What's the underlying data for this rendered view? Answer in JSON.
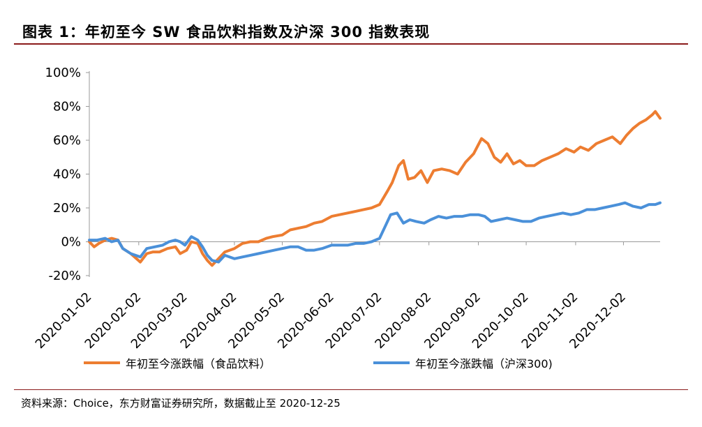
{
  "page": {
    "title": "图表 1：年初至今 SW 食品饮料指数及沪深 300 指数表现",
    "source": "资料来源：Choice，东方财富证券研究所，数据截止至 2020-12-25"
  },
  "chart_data": {
    "type": "line",
    "xlabel": "",
    "ylabel": "",
    "ylim": [
      -20,
      100
    ],
    "yticks": [
      "100%",
      "80%",
      "60%",
      "40%",
      "20%",
      "0%",
      "-20%"
    ],
    "yticks_values": [
      100,
      80,
      60,
      40,
      20,
      0,
      -20
    ],
    "xticks": [
      "2020-01-02",
      "2020-02-02",
      "2020-03-02",
      "2020-04-02",
      "2020-05-02",
      "2020-06-02",
      "2020-07-02",
      "2020-08-02",
      "2020-09-02",
      "2020-10-02",
      "2020-11-02",
      "2020-12-02"
    ],
    "xlim": [
      "2020-01-02",
      "2020-12-25"
    ],
    "grid": false,
    "legend_position": "bottom",
    "series": [
      {
        "name": "年初至今涨跌幅（食品饮料）",
        "color": "#ed7d31",
        "points": [
          [
            "2020-01-02",
            0
          ],
          [
            "2020-01-05",
            -3
          ],
          [
            "2020-01-08",
            -1
          ],
          [
            "2020-01-12",
            1
          ],
          [
            "2020-01-16",
            2
          ],
          [
            "2020-01-20",
            1
          ],
          [
            "2020-01-23",
            -4
          ],
          [
            "2020-01-28",
            -7
          ],
          [
            "2020-02-03",
            -12
          ],
          [
            "2020-02-07",
            -7
          ],
          [
            "2020-02-11",
            -6
          ],
          [
            "2020-02-15",
            -6
          ],
          [
            "2020-02-20",
            -4
          ],
          [
            "2020-02-25",
            -3
          ],
          [
            "2020-02-28",
            -7
          ],
          [
            "2020-03-03",
            -5
          ],
          [
            "2020-03-06",
            0
          ],
          [
            "2020-03-10",
            -1
          ],
          [
            "2020-03-13",
            -7
          ],
          [
            "2020-03-16",
            -11
          ],
          [
            "2020-03-19",
            -14
          ],
          [
            "2020-03-23",
            -10
          ],
          [
            "2020-03-27",
            -6
          ],
          [
            "2020-04-02",
            -4
          ],
          [
            "2020-04-07",
            -1
          ],
          [
            "2020-04-12",
            0
          ],
          [
            "2020-04-17",
            0
          ],
          [
            "2020-04-22",
            2
          ],
          [
            "2020-04-26",
            3
          ],
          [
            "2020-05-02",
            4
          ],
          [
            "2020-05-07",
            7
          ],
          [
            "2020-05-12",
            8
          ],
          [
            "2020-05-17",
            9
          ],
          [
            "2020-05-22",
            11
          ],
          [
            "2020-05-27",
            12
          ],
          [
            "2020-06-02",
            15
          ],
          [
            "2020-06-07",
            16
          ],
          [
            "2020-06-12",
            17
          ],
          [
            "2020-06-17",
            18
          ],
          [
            "2020-06-22",
            19
          ],
          [
            "2020-06-27",
            20
          ],
          [
            "2020-07-02",
            22
          ],
          [
            "2020-07-07",
            30
          ],
          [
            "2020-07-10",
            35
          ],
          [
            "2020-07-14",
            45
          ],
          [
            "2020-07-17",
            48
          ],
          [
            "2020-07-20",
            37
          ],
          [
            "2020-07-24",
            38
          ],
          [
            "2020-07-28",
            42
          ],
          [
            "2020-08-01",
            35
          ],
          [
            "2020-08-05",
            42
          ],
          [
            "2020-08-10",
            43
          ],
          [
            "2020-08-15",
            42
          ],
          [
            "2020-08-20",
            40
          ],
          [
            "2020-08-25",
            47
          ],
          [
            "2020-08-30",
            52
          ],
          [
            "2020-09-04",
            61
          ],
          [
            "2020-09-08",
            58
          ],
          [
            "2020-09-12",
            50
          ],
          [
            "2020-09-16",
            47
          ],
          [
            "2020-09-20",
            52
          ],
          [
            "2020-09-24",
            46
          ],
          [
            "2020-09-28",
            48
          ],
          [
            "2020-10-02",
            45
          ],
          [
            "2020-10-07",
            45
          ],
          [
            "2020-10-12",
            48
          ],
          [
            "2020-10-17",
            50
          ],
          [
            "2020-10-22",
            52
          ],
          [
            "2020-10-27",
            55
          ],
          [
            "2020-11-01",
            53
          ],
          [
            "2020-11-05",
            56
          ],
          [
            "2020-11-10",
            54
          ],
          [
            "2020-11-15",
            58
          ],
          [
            "2020-11-20",
            60
          ],
          [
            "2020-11-25",
            62
          ],
          [
            "2020-11-30",
            58
          ],
          [
            "2020-12-04",
            63
          ],
          [
            "2020-12-08",
            67
          ],
          [
            "2020-12-12",
            70
          ],
          [
            "2020-12-16",
            72
          ],
          [
            "2020-12-20",
            75
          ],
          [
            "2020-12-22",
            77
          ],
          [
            "2020-12-25",
            73
          ]
        ]
      },
      {
        "name": "年初至今涨跌幅（沪深300)",
        "color": "#4a90d9",
        "points": [
          [
            "2020-01-02",
            1
          ],
          [
            "2020-01-07",
            1
          ],
          [
            "2020-01-12",
            2
          ],
          [
            "2020-01-16",
            0
          ],
          [
            "2020-01-20",
            1
          ],
          [
            "2020-01-23",
            -4
          ],
          [
            "2020-01-28",
            -7
          ],
          [
            "2020-02-03",
            -9
          ],
          [
            "2020-02-07",
            -4
          ],
          [
            "2020-02-12",
            -3
          ],
          [
            "2020-02-17",
            -2
          ],
          [
            "2020-02-21",
            0
          ],
          [
            "2020-02-25",
            1
          ],
          [
            "2020-02-28",
            0
          ],
          [
            "2020-03-02",
            -2
          ],
          [
            "2020-03-06",
            3
          ],
          [
            "2020-03-10",
            1
          ],
          [
            "2020-03-13",
            -3
          ],
          [
            "2020-03-16",
            -8
          ],
          [
            "2020-03-19",
            -11
          ],
          [
            "2020-03-23",
            -12
          ],
          [
            "2020-03-27",
            -8
          ],
          [
            "2020-04-02",
            -10
          ],
          [
            "2020-04-07",
            -9
          ],
          [
            "2020-04-12",
            -8
          ],
          [
            "2020-04-17",
            -7
          ],
          [
            "2020-04-22",
            -6
          ],
          [
            "2020-04-27",
            -5
          ],
          [
            "2020-05-02",
            -4
          ],
          [
            "2020-05-07",
            -3
          ],
          [
            "2020-05-12",
            -3
          ],
          [
            "2020-05-17",
            -5
          ],
          [
            "2020-05-22",
            -5
          ],
          [
            "2020-05-27",
            -4
          ],
          [
            "2020-06-02",
            -2
          ],
          [
            "2020-06-07",
            -2
          ],
          [
            "2020-06-12",
            -2
          ],
          [
            "2020-06-17",
            -1
          ],
          [
            "2020-06-22",
            -1
          ],
          [
            "2020-06-27",
            0
          ],
          [
            "2020-07-02",
            2
          ],
          [
            "2020-07-06",
            10
          ],
          [
            "2020-07-09",
            16
          ],
          [
            "2020-07-13",
            17
          ],
          [
            "2020-07-17",
            11
          ],
          [
            "2020-07-21",
            13
          ],
          [
            "2020-07-25",
            12
          ],
          [
            "2020-07-30",
            11
          ],
          [
            "2020-08-03",
            13
          ],
          [
            "2020-08-08",
            15
          ],
          [
            "2020-08-13",
            14
          ],
          [
            "2020-08-18",
            15
          ],
          [
            "2020-08-23",
            15
          ],
          [
            "2020-08-28",
            16
          ],
          [
            "2020-09-02",
            16
          ],
          [
            "2020-09-06",
            15
          ],
          [
            "2020-09-10",
            12
          ],
          [
            "2020-09-15",
            13
          ],
          [
            "2020-09-20",
            14
          ],
          [
            "2020-09-25",
            13
          ],
          [
            "2020-09-30",
            12
          ],
          [
            "2020-10-05",
            12
          ],
          [
            "2020-10-10",
            14
          ],
          [
            "2020-10-15",
            15
          ],
          [
            "2020-10-20",
            16
          ],
          [
            "2020-10-25",
            17
          ],
          [
            "2020-10-30",
            16
          ],
          [
            "2020-11-04",
            17
          ],
          [
            "2020-11-09",
            19
          ],
          [
            "2020-11-14",
            19
          ],
          [
            "2020-11-19",
            20
          ],
          [
            "2020-11-24",
            21
          ],
          [
            "2020-11-29",
            22
          ],
          [
            "2020-12-03",
            23
          ],
          [
            "2020-12-08",
            21
          ],
          [
            "2020-12-13",
            20
          ],
          [
            "2020-12-18",
            22
          ],
          [
            "2020-12-22",
            22
          ],
          [
            "2020-12-25",
            23
          ]
        ]
      }
    ]
  }
}
